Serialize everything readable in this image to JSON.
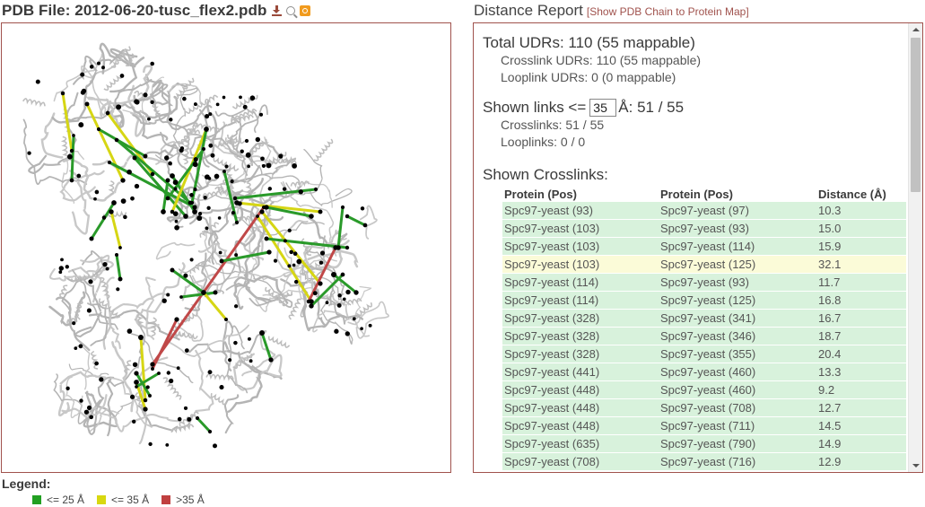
{
  "pdb_header": {
    "title": "PDB File: 2012-06-20-tusc_flex2.pdb"
  },
  "icons": {
    "download": "download-icon",
    "search": "search-icon",
    "snapshot": "snapshot-icon"
  },
  "legend": {
    "title": "Legend:",
    "items": [
      {
        "label": "<= 25 Å",
        "color": "#22a022"
      },
      {
        "label": "<= 35 Å",
        "color": "#d8d810"
      },
      {
        "label": ">35 Å",
        "color": "#c04040"
      }
    ]
  },
  "report": {
    "title": "Distance Report",
    "map_link": "[Show PDB Chain to Protein Map]",
    "total_udrs": "Total UDRs: 110 (55 mappable)",
    "crosslink_udrs": "Crosslink UDRs: 110 (55 mappable)",
    "looplink_udrs": "Looplink UDRs: 0 (0 mappable)",
    "shown_links_label": "Shown links <=",
    "shown_links_value": "35",
    "shown_links_suffix": "Å: 51 / 55",
    "shown_crosslinks": "Crosslinks: 51 / 55",
    "shown_looplinks": "Looplinks: 0 / 0",
    "crosslinks_title": "Shown Crosslinks:",
    "table": {
      "headers": [
        "Protein (Pos)",
        "Protein (Pos)",
        "Distance (Å)"
      ],
      "rows": [
        [
          "Spc97-yeast (93)",
          "Spc97-yeast (97)",
          "10.3"
        ],
        [
          "Spc97-yeast (103)",
          "Spc97-yeast (93)",
          "15.0"
        ],
        [
          "Spc97-yeast (103)",
          "Spc97-yeast (114)",
          "15.9"
        ],
        [
          "Spc97-yeast (103)",
          "Spc97-yeast (125)",
          "32.1"
        ],
        [
          "Spc97-yeast (114)",
          "Spc97-yeast (93)",
          "11.7"
        ],
        [
          "Spc97-yeast (114)",
          "Spc97-yeast (125)",
          "16.8"
        ],
        [
          "Spc97-yeast (328)",
          "Spc97-yeast (341)",
          "16.7"
        ],
        [
          "Spc97-yeast (328)",
          "Spc97-yeast (346)",
          "18.7"
        ],
        [
          "Spc97-yeast (328)",
          "Spc97-yeast (355)",
          "20.4"
        ],
        [
          "Spc97-yeast (441)",
          "Spc97-yeast (460)",
          "13.3"
        ],
        [
          "Spc97-yeast (448)",
          "Spc97-yeast (460)",
          "9.2"
        ],
        [
          "Spc97-yeast (448)",
          "Spc97-yeast (708)",
          "12.7"
        ],
        [
          "Spc97-yeast (448)",
          "Spc97-yeast (711)",
          "14.5"
        ],
        [
          "Spc97-yeast (635)",
          "Spc97-yeast (790)",
          "14.9"
        ],
        [
          "Spc97-yeast (708)",
          "Spc97-yeast (716)",
          "12.9"
        ]
      ]
    }
  }
}
